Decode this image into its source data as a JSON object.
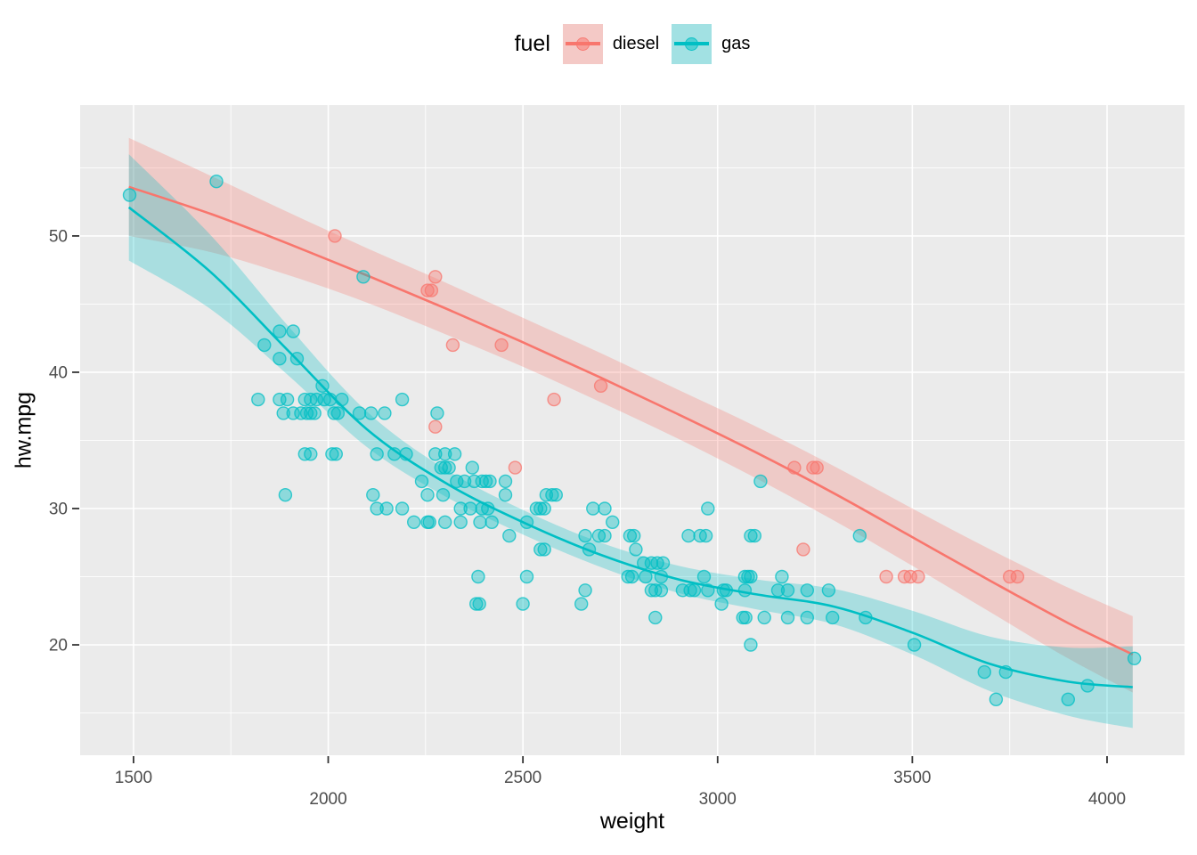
{
  "legend": {
    "title": "fuel",
    "items": [
      {
        "label": "diesel",
        "color": "#F8766D"
      },
      {
        "label": "gas",
        "color": "#00BFC4"
      }
    ]
  },
  "axes": {
    "x": {
      "title": "weight",
      "major_ticks": [
        1500,
        2000,
        2500,
        3000,
        3500,
        4000
      ],
      "minor_ticks": [
        1750,
        2250,
        2750,
        3250,
        3750
      ],
      "staggered_labels": true
    },
    "y": {
      "title": "hw.mpg",
      "major_ticks": [
        20,
        30,
        40,
        50
      ],
      "minor_ticks": [
        15,
        25,
        35,
        45,
        55
      ]
    }
  },
  "styles": {
    "panel_bg": "#EBEBEB",
    "grid_color": "#FFFFFF",
    "tick_text_color": "#4D4D4D",
    "tick_mark_color": "#333333",
    "axis_title_color": "#000000",
    "point_fill_opacity": 0.4,
    "point_stroke_opacity": 0.75,
    "ribbon_opacity": 0.28
  },
  "chart_data": {
    "type": "scatter",
    "title": "",
    "xlabel": "weight",
    "ylabel": "hw.mpg",
    "xlim": [
      1363,
      4199
    ],
    "ylim": [
      11.9,
      59.6
    ],
    "grid": true,
    "legend_position": "top",
    "series": [
      {
        "name": "diesel",
        "color": "#F8766D",
        "points": [
          [
            2017,
            50
          ],
          [
            2275,
            47
          ],
          [
            2255,
            46
          ],
          [
            2265,
            46
          ],
          [
            2320,
            42
          ],
          [
            2445,
            42
          ],
          [
            2700,
            39
          ],
          [
            2580,
            38
          ],
          [
            2275,
            36
          ],
          [
            2480,
            33
          ],
          [
            3197,
            33
          ],
          [
            3245,
            33
          ],
          [
            3255,
            33
          ],
          [
            3220,
            27
          ],
          [
            3433,
            25
          ],
          [
            3480,
            25
          ],
          [
            3495,
            25
          ],
          [
            3515,
            25
          ],
          [
            3750,
            25
          ],
          [
            3770,
            25
          ]
        ],
        "smooth": {
          "x": [
            1488,
            1700,
            1900,
            2100,
            2300,
            2500,
            2700,
            2900,
            3100,
            3300,
            3500,
            3700,
            3900,
            4066
          ],
          "y": [
            53.6,
            51.6,
            49.4,
            47.1,
            44.7,
            42.2,
            39.6,
            36.9,
            34.1,
            31.1,
            27.9,
            24.7,
            21.6,
            19.3
          ],
          "hw": [
            3.6,
            2.8,
            2.3,
            2.0,
            1.9,
            1.8,
            1.8,
            1.8,
            1.9,
            2.0,
            2.1,
            2.3,
            2.6,
            2.8
          ]
        }
      },
      {
        "name": "gas",
        "color": "#00BFC4",
        "points": [
          [
            1490,
            53
          ],
          [
            1713,
            54
          ],
          [
            2090,
            47
          ],
          [
            1875,
            43
          ],
          [
            1910,
            43
          ],
          [
            1836,
            42
          ],
          [
            1875,
            41
          ],
          [
            1920,
            41
          ],
          [
            1985,
            39
          ],
          [
            1820,
            38
          ],
          [
            1875,
            38
          ],
          [
            1895,
            38
          ],
          [
            1940,
            38
          ],
          [
            1955,
            38
          ],
          [
            1970,
            38
          ],
          [
            1990,
            38
          ],
          [
            2005,
            38
          ],
          [
            2035,
            38
          ],
          [
            2190,
            38
          ],
          [
            1885,
            37
          ],
          [
            1910,
            37
          ],
          [
            1930,
            37
          ],
          [
            1945,
            37
          ],
          [
            1955,
            37
          ],
          [
            1965,
            37
          ],
          [
            2015,
            37
          ],
          [
            2025,
            37
          ],
          [
            2080,
            37
          ],
          [
            2110,
            37
          ],
          [
            2145,
            37
          ],
          [
            2280,
            37
          ],
          [
            1940,
            34
          ],
          [
            1955,
            34
          ],
          [
            2010,
            34
          ],
          [
            2020,
            34
          ],
          [
            2125,
            34
          ],
          [
            2170,
            34
          ],
          [
            2200,
            34
          ],
          [
            2275,
            34
          ],
          [
            2300,
            34
          ],
          [
            2325,
            34
          ],
          [
            2290,
            33
          ],
          [
            2300,
            33
          ],
          [
            2310,
            33
          ],
          [
            2370,
            33
          ],
          [
            2240,
            32
          ],
          [
            2330,
            32
          ],
          [
            2350,
            32
          ],
          [
            2375,
            32
          ],
          [
            2395,
            32
          ],
          [
            2405,
            32
          ],
          [
            2415,
            32
          ],
          [
            2455,
            32
          ],
          [
            3110,
            32
          ],
          [
            1890,
            31
          ],
          [
            2115,
            31
          ],
          [
            2255,
            31
          ],
          [
            2295,
            31
          ],
          [
            2455,
            31
          ],
          [
            2560,
            31
          ],
          [
            2575,
            31
          ],
          [
            2585,
            31
          ],
          [
            2125,
            30
          ],
          [
            2150,
            30
          ],
          [
            2190,
            30
          ],
          [
            2340,
            30
          ],
          [
            2365,
            30
          ],
          [
            2395,
            30
          ],
          [
            2410,
            30
          ],
          [
            2535,
            30
          ],
          [
            2545,
            30
          ],
          [
            2555,
            30
          ],
          [
            2680,
            30
          ],
          [
            2710,
            30
          ],
          [
            2975,
            30
          ],
          [
            2220,
            29
          ],
          [
            2255,
            29
          ],
          [
            2260,
            29
          ],
          [
            2300,
            29
          ],
          [
            2340,
            29
          ],
          [
            2390,
            29
          ],
          [
            2420,
            29
          ],
          [
            2510,
            29
          ],
          [
            2730,
            29
          ],
          [
            2465,
            28
          ],
          [
            2660,
            28
          ],
          [
            2695,
            28
          ],
          [
            2710,
            28
          ],
          [
            2775,
            28
          ],
          [
            2785,
            28
          ],
          [
            2925,
            28
          ],
          [
            2955,
            28
          ],
          [
            2970,
            28
          ],
          [
            3085,
            28
          ],
          [
            3095,
            28
          ],
          [
            3365,
            28
          ],
          [
            2545,
            27
          ],
          [
            2555,
            27
          ],
          [
            2670,
            27
          ],
          [
            2790,
            27
          ],
          [
            2810,
            26
          ],
          [
            2830,
            26
          ],
          [
            2845,
            26
          ],
          [
            2860,
            26
          ],
          [
            2385,
            25
          ],
          [
            2510,
            25
          ],
          [
            2770,
            25
          ],
          [
            2780,
            25
          ],
          [
            2815,
            25
          ],
          [
            2855,
            25
          ],
          [
            2965,
            25
          ],
          [
            3070,
            25
          ],
          [
            3078,
            25
          ],
          [
            3085,
            25
          ],
          [
            3165,
            25
          ],
          [
            2660,
            24
          ],
          [
            2830,
            24
          ],
          [
            2840,
            24
          ],
          [
            2855,
            24
          ],
          [
            2910,
            24
          ],
          [
            2930,
            24
          ],
          [
            2940,
            24
          ],
          [
            2975,
            24
          ],
          [
            3015,
            24
          ],
          [
            3022,
            24
          ],
          [
            3070,
            24
          ],
          [
            3155,
            24
          ],
          [
            3180,
            24
          ],
          [
            3230,
            24
          ],
          [
            3285,
            24
          ],
          [
            2380,
            23
          ],
          [
            2388,
            23
          ],
          [
            2500,
            23
          ],
          [
            2650,
            23
          ],
          [
            3010,
            23
          ],
          [
            2840,
            22
          ],
          [
            3065,
            22
          ],
          [
            3072,
            22
          ],
          [
            3120,
            22
          ],
          [
            3180,
            22
          ],
          [
            3230,
            22
          ],
          [
            3295,
            22
          ],
          [
            3380,
            22
          ],
          [
            3085,
            20
          ],
          [
            3505,
            20
          ],
          [
            4070,
            19
          ],
          [
            3685,
            18
          ],
          [
            3740,
            18
          ],
          [
            3950,
            17
          ],
          [
            3715,
            16
          ],
          [
            3900,
            16
          ]
        ],
        "smooth": {
          "x": [
            1488,
            1700,
            1900,
            2100,
            2300,
            2500,
            2700,
            2900,
            3100,
            3300,
            3500,
            3700,
            3900,
            4066
          ],
          "y": [
            52.1,
            47.3,
            41.5,
            35.8,
            31.9,
            29.0,
            26.6,
            24.8,
            23.7,
            22.8,
            20.9,
            18.6,
            17.3,
            16.9
          ],
          "hw": [
            3.9,
            2.7,
            1.8,
            1.3,
            1.0,
            0.9,
            0.9,
            1.0,
            1.1,
            1.3,
            1.6,
            2.0,
            2.5,
            3.0
          ]
        }
      }
    ]
  }
}
